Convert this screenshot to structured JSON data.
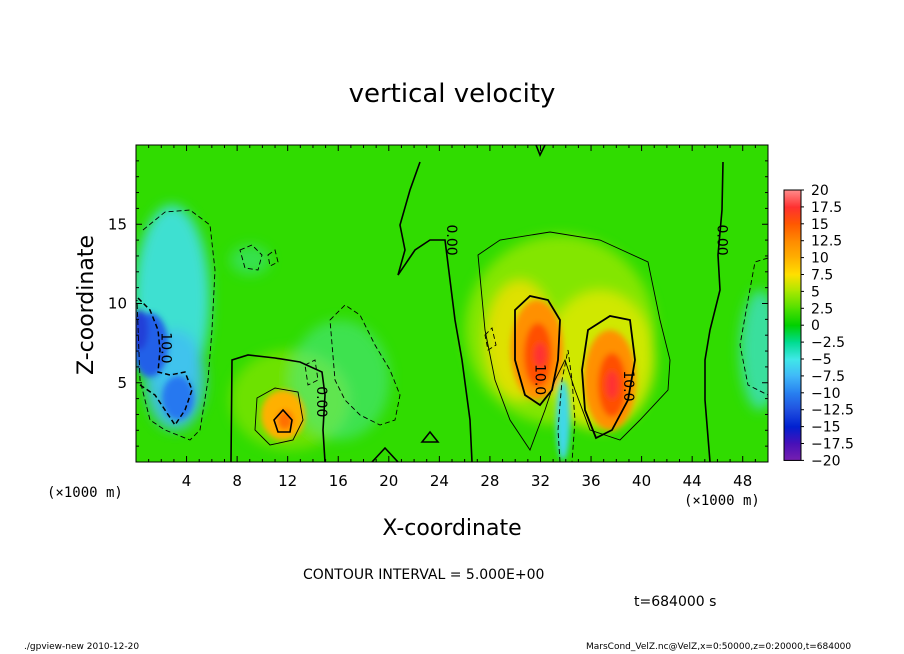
{
  "chart_data": {
    "type": "heatmap",
    "title": "vertical velocity",
    "xlabel": "X-coordinate",
    "ylabel": "Z-coordinate",
    "x_unit": "(×1000 m)",
    "y_unit": "(×1000 m)",
    "xlim": [
      0,
      50
    ],
    "ylim": [
      0,
      20
    ],
    "x_ticks": [
      4,
      8,
      12,
      16,
      20,
      24,
      28,
      32,
      36,
      40,
      44,
      48
    ],
    "y_ticks": [
      5,
      10,
      15
    ],
    "contour_interval_text": "CONTOUR INTERVAL = 5.000E+00",
    "time_text": "t=684000 s",
    "contour_labels": [
      {
        "text": "10.0",
        "x": 2.0,
        "y": 7.2
      },
      {
        "text": "0.00",
        "x": 14.3,
        "y": 3.8
      },
      {
        "text": "0.00",
        "x": 24.6,
        "y": 14.0
      },
      {
        "text": "10.0",
        "x": 31.6,
        "y": 5.2
      },
      {
        "text": "10.0",
        "x": 38.6,
        "y": 4.8
      },
      {
        "text": "0.00",
        "x": 46.0,
        "y": 14.0
      }
    ],
    "colorbar": {
      "levels": [
        "20",
        "17.5",
        "15",
        "12.5",
        "10",
        "7.5",
        "5",
        "2.5",
        "0",
        "−2.5",
        "−5",
        "−7.5",
        "−10",
        "−12.5",
        "−15",
        "−17.5",
        "−20"
      ],
      "colors": [
        "#ff8c8c",
        "#ff3030",
        "#ff5800",
        "#ff8a00",
        "#ffb000",
        "#ffe000",
        "#a8e800",
        "#50e000",
        "#00d000",
        "#00dc90",
        "#40e8e8",
        "#40b8f8",
        "#2880f0",
        "#2050e0",
        "#0020d0",
        "#4810b8",
        "#7820b0"
      ]
    },
    "features": [
      {
        "name": "updraft",
        "x": 31.2,
        "z": 8.5,
        "w": 14
      },
      {
        "name": "updraft",
        "x": 37.5,
        "z": 6.0,
        "w": 14
      },
      {
        "name": "updraft",
        "x": 12.3,
        "z": 3.0,
        "w": 8
      },
      {
        "name": "downdraft",
        "x": 1.5,
        "z": 9.5,
        "w": -12
      },
      {
        "name": "downdraft",
        "x": 3.5,
        "z": 5.0,
        "w": -10
      },
      {
        "name": "downdraft",
        "x": 33.4,
        "z": 3.5,
        "w": -5
      }
    ]
  },
  "footer": {
    "left": "./gpview-new   2010-12-20",
    "right": "MarsCond_VelZ.nc@VelZ,x=0:50000,z=0:20000,t=684000"
  }
}
